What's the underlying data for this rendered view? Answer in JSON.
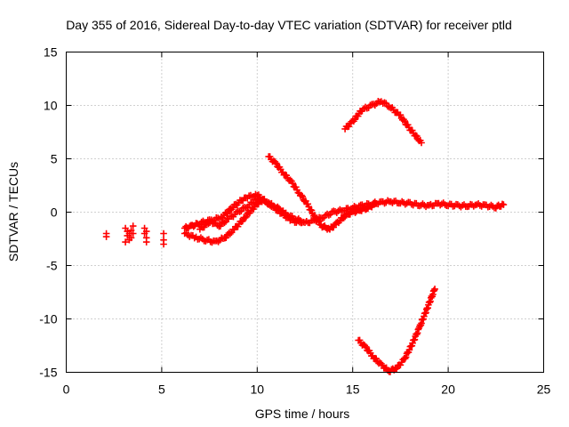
{
  "chart_data": {
    "type": "scatter",
    "title": "Day 355 of 2016, Sidereal Day-to-day VTEC variation (SDTVAR) for receiver ptld",
    "xlabel": "GPS time / hours",
    "ylabel": "SDTVAR / TECUs",
    "xlim": [
      0,
      25
    ],
    "ylim": [
      -15,
      15
    ],
    "xticks": [
      "0",
      "5",
      "10",
      "15",
      "20",
      "25"
    ],
    "yticks": [
      "-15",
      "-10",
      "-5",
      "0",
      "5",
      "10",
      "15"
    ],
    "grid": true,
    "marker": "+",
    "color": "#ff0000",
    "series": [
      {
        "name": "isolated-early",
        "x": [
          2.1,
          2.1,
          3.1,
          3.1,
          3.2,
          3.2,
          3.3,
          3.3,
          3.4,
          3.4,
          3.5,
          3.5,
          4.1,
          4.1,
          4.2,
          4.2,
          4.2,
          5.1,
          5.1,
          5.1
        ],
        "y": [
          -2.0,
          -2.3,
          -1.5,
          -2.8,
          -1.8,
          -2.2,
          -2.0,
          -2.6,
          -1.7,
          -2.4,
          -1.3,
          -2.0,
          -1.5,
          -2.0,
          -2.4,
          -2.8,
          -1.8,
          -2.0,
          -2.6,
          -3.0
        ]
      },
      {
        "name": "central-trace",
        "x": [
          6.2,
          6.6,
          7.0,
          7.5,
          8.0,
          8.5,
          9.0,
          9.5,
          10.0,
          10.5,
          11.0,
          11.5,
          12.0,
          12.5,
          13.0,
          13.5,
          14.0,
          14.5,
          15.0,
          15.5,
          16.0,
          16.5,
          17.0,
          17.5,
          18.0,
          18.5,
          19.0,
          19.5,
          20.0,
          20.5,
          21.0,
          21.5,
          22.0,
          22.5,
          22.9
        ],
        "y": [
          -1.5,
          -1.3,
          -1.0,
          -0.8,
          -1.3,
          -0.6,
          0.0,
          0.6,
          1.2,
          0.9,
          0.5,
          -0.2,
          -0.6,
          -1.0,
          -0.8,
          -0.4,
          0.0,
          0.2,
          0.4,
          0.6,
          0.8,
          0.9,
          1.0,
          0.9,
          0.8,
          0.7,
          0.6,
          0.8,
          0.7,
          0.6,
          0.6,
          0.7,
          0.6,
          0.5,
          0.7
        ]
      },
      {
        "name": "lower-early-trace",
        "x": [
          6.2,
          6.8,
          7.3,
          7.8,
          8.3,
          8.8,
          9.3,
          9.8,
          10.2
        ],
        "y": [
          -2.0,
          -2.4,
          -2.6,
          -2.8,
          -2.4,
          -1.6,
          -0.6,
          0.4,
          1.1
        ]
      },
      {
        "name": "upper-early-trace",
        "x": [
          7.0,
          7.6,
          8.2,
          8.8,
          9.4,
          10.0,
          10.6,
          11.2,
          11.8,
          12.3
        ],
        "y": [
          -1.6,
          -0.8,
          -0.4,
          0.6,
          1.4,
          1.6,
          0.8,
          0.0,
          -0.8,
          -1.0
        ]
      },
      {
        "name": "falling-trace",
        "x": [
          10.6,
          11.0,
          11.4,
          11.8,
          12.2,
          12.6,
          13.0,
          13.4,
          13.8
        ],
        "y": [
          5.2,
          4.5,
          3.6,
          2.8,
          1.8,
          0.8,
          -0.4,
          -1.3,
          -1.6
        ]
      },
      {
        "name": "late-return-trace",
        "x": [
          13.8,
          14.2,
          14.6,
          15.0,
          15.4,
          15.8,
          16.2
        ],
        "y": [
          -1.6,
          -1.0,
          -0.3,
          0.0,
          0.2,
          0.4,
          0.8
        ]
      },
      {
        "name": "upper-arc",
        "x": [
          14.6,
          15.0,
          15.5,
          16.0,
          16.5,
          17.0,
          17.5,
          18.0,
          18.6
        ],
        "y": [
          7.8,
          8.5,
          9.6,
          10.0,
          10.4,
          9.8,
          9.0,
          7.8,
          6.5
        ]
      },
      {
        "name": "lower-arc",
        "x": [
          15.3,
          15.7,
          16.1,
          16.5,
          16.9,
          17.3,
          17.7,
          18.1,
          18.5,
          18.9,
          19.3
        ],
        "y": [
          -12.0,
          -12.7,
          -13.6,
          -14.3,
          -14.9,
          -14.6,
          -13.8,
          -12.4,
          -10.8,
          -9.0,
          -7.2
        ]
      }
    ]
  }
}
